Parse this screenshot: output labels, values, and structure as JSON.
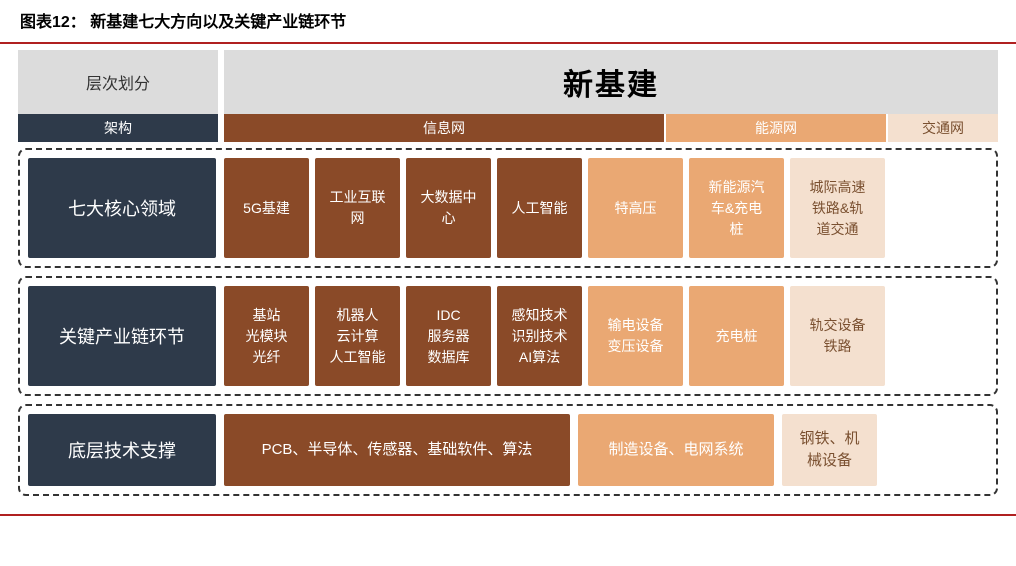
{
  "title": "图表12：  新基建七大方向以及关键产业链环节",
  "colors": {
    "navy": "#2e3a4a",
    "brown": "#8a4a28",
    "peach": "#eaa873",
    "cream": "#f4e0cf",
    "gray": "#dcdcdc",
    "cream_text": "#7a5030"
  },
  "layout": {
    "col_width_info": 85,
    "col_width_energy": 95,
    "col_width_transport": 95,
    "row1_height": 100,
    "row2_height": 100,
    "row3_height": 72,
    "block1_wide_width": 346,
    "block2_wide_width": 196,
    "block3_wide_width": 95
  },
  "header": {
    "left_top": "层次划分",
    "left_bottom": "架构",
    "right_top": "新基建",
    "nets": [
      {
        "label": "信息网",
        "color": "#8a4a28",
        "flex": 4
      },
      {
        "label": "能源网",
        "color": "#eaa873",
        "flex": 2
      },
      {
        "label": "交通网",
        "color": "#f4e0cf",
        "flex": 1,
        "text_color": "#7a5030"
      }
    ]
  },
  "rows": [
    {
      "side": "七大核心领域",
      "blocks": [
        {
          "color": "#8a4a28",
          "cells": [
            "5G基建",
            "工业互联\n网",
            "大数据中\n心",
            "人工智能"
          ]
        },
        {
          "color": "#eaa873",
          "cells": [
            "特高压",
            "新能源汽\n车&充电\n桩"
          ]
        },
        {
          "color": "#f4e0cf",
          "text_color": "#7a5030",
          "cells": [
            "城际高速\n铁路&轨\n道交通"
          ]
        }
      ]
    },
    {
      "side": "关键产业链环节",
      "blocks": [
        {
          "color": "#8a4a28",
          "cells": [
            "基站\n光模块\n光纤",
            "机器人\n云计算\n人工智能",
            "IDC\n服务器\n数据库",
            "感知技术\n识别技术\nAI算法"
          ]
        },
        {
          "color": "#eaa873",
          "cells": [
            "输电设备\n变压设备",
            "充电桩"
          ]
        },
        {
          "color": "#f4e0cf",
          "text_color": "#7a5030",
          "cells": [
            "轨交设备\n铁路"
          ]
        }
      ]
    },
    {
      "side": "底层技术支撑",
      "wide_blocks": [
        {
          "color": "#8a4a28",
          "text": "PCB、半导体、传感器、基础软件、算法"
        },
        {
          "color": "#eaa873",
          "text": "制造设备、电网系统"
        },
        {
          "color": "#f4e0cf",
          "text_color": "#7a5030",
          "text": "钢铁、机\n械设备"
        }
      ]
    }
  ]
}
